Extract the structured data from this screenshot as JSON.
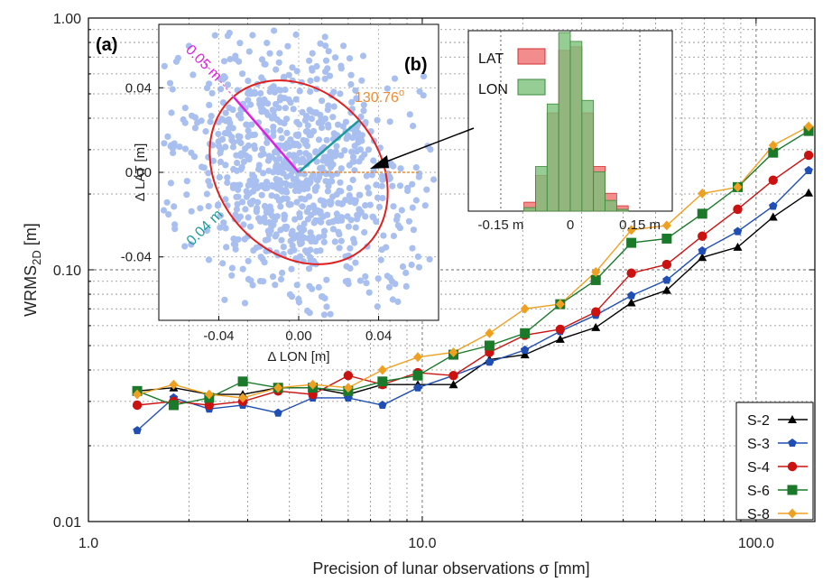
{
  "chart_data": [
    {
      "type": "line",
      "xlabel": "Precision of lunar observations σ [mm]",
      "ylabel": "WRMS",
      "ylabel_sub": "2D",
      "ylabel_unit": " [m]",
      "xscale": "log",
      "yscale": "log",
      "xlim": [
        1.0,
        150
      ],
      "ylim": [
        0.01,
        1.0
      ],
      "xticks": [
        1.0,
        10.0,
        100.0
      ],
      "xtick_labels": [
        "1.0",
        "10.0",
        "100.0"
      ],
      "yticks": [
        0.01,
        0.1,
        1.0
      ],
      "ytick_labels": [
        "0.01",
        "0.10",
        "1.00"
      ],
      "grid": true,
      "legend_position": "bottom-right",
      "x": [
        1.4,
        1.8,
        2.3,
        2.9,
        3.7,
        4.7,
        6.0,
        7.6,
        9.7,
        12.4,
        15.9,
        20.3,
        25.9,
        33.1,
        42.3,
        54.0,
        69.0,
        88.1,
        112.5,
        143.7
      ],
      "series": [
        {
          "name": "S-2",
          "color": "#000000",
          "marker": "triangle",
          "values": [
            0.033,
            0.034,
            0.032,
            0.032,
            0.034,
            0.034,
            0.032,
            0.035,
            0.035,
            0.035,
            0.044,
            0.046,
            0.053,
            0.059,
            0.074,
            0.083,
            0.112,
            0.123,
            0.162,
            0.202
          ]
        },
        {
          "name": "S-3",
          "color": "#1f4eb4",
          "marker": "pentagon",
          "values": [
            0.023,
            0.031,
            0.028,
            0.029,
            0.027,
            0.031,
            0.031,
            0.029,
            0.034,
            0.038,
            0.043,
            0.048,
            0.057,
            0.066,
            0.079,
            0.091,
            0.119,
            0.142,
            0.179,
            0.248
          ]
        },
        {
          "name": "S-4",
          "color": "#cc1111",
          "marker": "circle",
          "values": [
            0.029,
            0.03,
            0.029,
            0.03,
            0.033,
            0.032,
            0.038,
            0.035,
            0.039,
            0.038,
            0.047,
            0.055,
            0.058,
            0.068,
            0.097,
            0.105,
            0.136,
            0.174,
            0.227,
            0.285
          ]
        },
        {
          "name": "S-6",
          "color": "#1a7a2a",
          "marker": "square",
          "values": [
            0.033,
            0.029,
            0.031,
            0.036,
            0.034,
            0.034,
            0.033,
            0.036,
            0.038,
            0.046,
            0.05,
            0.056,
            0.073,
            0.091,
            0.128,
            0.133,
            0.167,
            0.213,
            0.292,
            0.356
          ]
        },
        {
          "name": "S-8",
          "color": "#f0a020",
          "marker": "diamond",
          "values": [
            0.032,
            0.035,
            0.032,
            0.031,
            0.034,
            0.035,
            0.034,
            0.04,
            0.045,
            0.047,
            0.056,
            0.07,
            0.073,
            0.098,
            0.144,
            0.15,
            0.201,
            0.213,
            0.312,
            0.371
          ]
        }
      ]
    },
    {
      "type": "scatter",
      "label": "(a)",
      "xlabel": "Δ LON [m]",
      "ylabel": "Δ LAT [m]",
      "xlim": [
        -0.07,
        0.07
      ],
      "ylim": [
        -0.07,
        0.07
      ],
      "xtick_labels": [
        "-0.04",
        "0.00",
        "0.04"
      ],
      "ytick_labels": [
        "0.04",
        "0.00",
        "-0.04"
      ],
      "xtick_values": [
        -0.04,
        0.0,
        0.04
      ],
      "ytick_values": [
        0.04,
        0.0,
        -0.04
      ],
      "point_color": "#a8bff0",
      "ellipse": {
        "semi_major": 0.05,
        "semi_minor": 0.04,
        "angle_deg": 130.76,
        "color": "#e02020"
      },
      "annotations": [
        {
          "text": "0.05 m",
          "color": "#e020e0"
        },
        {
          "text": "0.04 m",
          "color": "#1a9a9a"
        },
        {
          "text": "130.76",
          "superscript": "o",
          "color": "#f08a30"
        }
      ]
    },
    {
      "type": "bar",
      "label": "(b)",
      "xtick_labels": [
        "-0.15 m",
        "0",
        "0.15 m"
      ],
      "xtick_values": [
        -0.15,
        0.0,
        0.15
      ],
      "xlim": [
        -0.22,
        0.22
      ],
      "bin_edges": [
        -0.225,
        -0.2,
        -0.175,
        -0.15,
        -0.125,
        -0.1,
        -0.075,
        -0.05,
        -0.025,
        0.0,
        0.025,
        0.05,
        0.075,
        0.1,
        0.125,
        0.15,
        0.175,
        0.2,
        0.225
      ],
      "series": [
        {
          "name": "LAT",
          "color": "#f07070",
          "values": [
            0,
            0,
            0,
            0,
            0,
            0.05,
            0.2,
            0.55,
            0.9,
            0.92,
            0.55,
            0.25,
            0.1,
            0.03,
            0,
            0,
            0,
            0
          ]
        },
        {
          "name": "LON",
          "color": "#7ac07a",
          "values": [
            0,
            0,
            0,
            0,
            0,
            0.02,
            0.25,
            0.6,
            1.0,
            0.95,
            0.62,
            0.22,
            0.06,
            0.01,
            0,
            0,
            0,
            0
          ]
        }
      ]
    }
  ]
}
